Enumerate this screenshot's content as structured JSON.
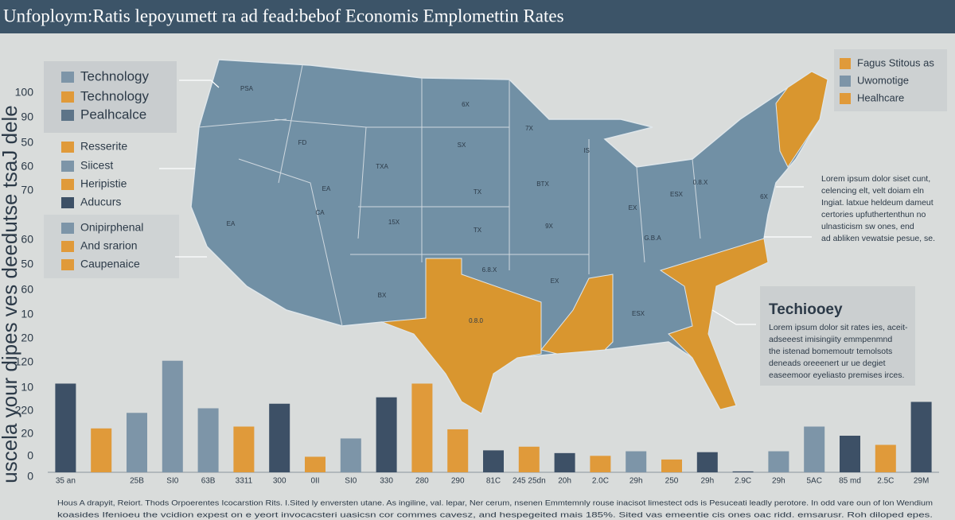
{
  "title": "Unfoploym:Ratis lepoyumett ra ad fead:bebof Economis Emplomettin Rates",
  "side_title": "uscela your dipes ves deedutse tsaJ dele",
  "side_labels": [
    "100",
    "90",
    "50",
    "60",
    "70",
    "60",
    "50",
    "60",
    "10",
    "20",
    "120",
    "10",
    "220",
    "20",
    "0",
    "0"
  ],
  "legend_left": [
    [
      {
        "label": "Technology",
        "color": "#7d95a8"
      },
      {
        "label": "Technology",
        "color": "#e09a3a"
      },
      {
        "label": "Pealhcalce",
        "color": "#5d7488"
      }
    ],
    [
      {
        "label": "Resserite",
        "color": "#e09a3a"
      },
      {
        "label": "Siicest",
        "color": "#7d95a8"
      },
      {
        "label": "Heripistie",
        "color": "#e09a3a"
      },
      {
        "label": "Aducurs",
        "color": "#3d5066"
      }
    ],
    [
      {
        "label": "Onipirphenal",
        "color": "#7d95a8"
      },
      {
        "label": "And srarion",
        "color": "#e09a3a"
      },
      {
        "label": "Caupenaice",
        "color": "#e09a3a"
      }
    ]
  ],
  "legend_right": [
    {
      "label": "Fagus Stitous as",
      "color": "#e09a3a"
    },
    {
      "label": "Uwomotige",
      "color": "#7d95a8"
    },
    {
      "label": "Healhcare",
      "color": "#e09a3a"
    }
  ],
  "map_labels": [
    "PSA",
    "6X",
    "FD",
    "TXA",
    "EA",
    "CA",
    "EA",
    "15X",
    "TX",
    "9X",
    "7X",
    "SX",
    "IS",
    "BTX",
    "TX",
    "0.8.X",
    "ESX",
    "EX",
    "G.B.A",
    "0.8.0",
    "6.8.X",
    "EX",
    "ESX",
    "BX",
    "6X"
  ],
  "callout_1": [
    "Lorem ipsum dolor siset cunt,",
    "celencing elt, velt doiam eln",
    "Ingiat. latxue heldeum dameut",
    "certories upfuthertenthun no",
    "ulnasticism sw ones, end",
    "ad abliken vewatsie pesue, se."
  ],
  "callout_2": {
    "heading": "Techiooey",
    "lines": [
      "Lorem ipsum dolor sit rates ies, aceit-",
      "adseeest imisingiity emmpenmnd",
      "the istenad bomemoutr temolsots",
      "deneads oreeenert ur ue degiet",
      "easeemoor eyeliasto premises irces."
    ]
  },
  "footer": [
    "Hous A drapyit, Reiort. Thods Orpoerentes Icocarstion Rits. I.Sited ly enversten utane. As ingiline, val. lepar, Ner cerum, nsenen Emmtemnly rouse inacisot limestect ods is Pesuceati leadly perotore. In odd vare oun of lon Wendium",
    "koasides Ifenioeu the vcidion expest on e yeort invocacsteri uasicsn cor commes cavesz, and hespegeited mais 185%. Sited vas emeentie cis ones oac ridd. emsarusr. Roh diloped epes."
  ],
  "chart_data": {
    "type": "bar",
    "categories": [
      "35 an",
      null,
      "25B",
      "SI0",
      "63B",
      "3311",
      "300",
      "0II",
      "SI0",
      "330",
      "280",
      "290",
      "81C",
      "245 25dn",
      "20h",
      "2.0C",
      "29h",
      "250",
      "29h",
      "2.9C",
      "29h",
      "5AC",
      "85 md",
      "2.5C",
      "29M"
    ],
    "values": [
      97,
      48,
      65,
      122,
      70,
      50,
      75,
      17,
      37,
      82,
      97,
      47,
      24,
      28,
      21,
      18,
      23,
      14,
      22,
      1,
      23,
      50,
      40,
      30,
      77
    ],
    "colors": [
      "#3d5066",
      "#e09a3a",
      "#7d95a8",
      "#7d95a8",
      "#7d95a8",
      "#e09a3a",
      "#3d5066",
      "#e09a3a",
      "#7d95a8",
      "#3d5066",
      "#e09a3a",
      "#e09a3a",
      "#3d5066",
      "#e09a3a",
      "#3d5066",
      "#e09a3a",
      "#7d95a8",
      "#e09a3a",
      "#3d5066",
      "#3d5066",
      "#7d95a8",
      "#7d95a8",
      "#3d5066",
      "#e09a3a",
      "#3d5066"
    ],
    "ylim": [
      0,
      130
    ]
  }
}
